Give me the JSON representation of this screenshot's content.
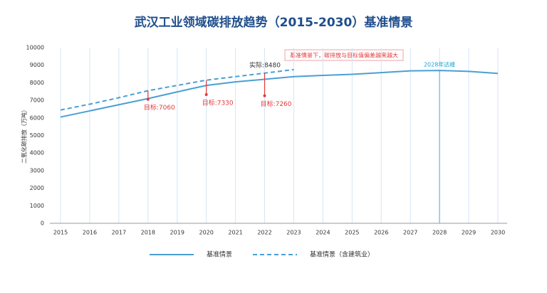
{
  "chart_data": {
    "type": "line",
    "title": "武汉工业领域碳排放趋势（2015-2030）基准情景",
    "y_label": "二氧化碳排放（万吨）",
    "categories": [
      "2015",
      "2016",
      "2017",
      "2018",
      "2019",
      "2020",
      "2021",
      "2022",
      "2023",
      "2024",
      "2025",
      "2026",
      "2027",
      "2028",
      "2029",
      "2030"
    ],
    "series": [
      {
        "name": "基准情景",
        "color": "#4a9fd4",
        "dash": false,
        "values": [
          6050,
          6400,
          6750,
          7100,
          7480,
          7850,
          8050,
          8200,
          8350,
          8420,
          8480,
          8580,
          8680,
          8700,
          8650,
          8530
        ]
      },
      {
        "name": "基准情景（含建筑业）",
        "color": "#4a9fd4",
        "dash": true,
        "values": [
          6450,
          6780,
          7150,
          7550,
          7850,
          8150,
          8350,
          8550,
          8750,
          null,
          null,
          null,
          null,
          null,
          null,
          null
        ]
      }
    ],
    "ylim": [
      0,
      10000
    ],
    "yticks": [
      0,
      1000,
      2000,
      3000,
      4000,
      5000,
      6000,
      7000,
      8000,
      9000,
      10000
    ],
    "grid": true,
    "targets": [
      {
        "x": "2018",
        "value": 7060,
        "label": "目标:7060"
      },
      {
        "x": "2020",
        "value": 7330,
        "label": "目标:7330"
      },
      {
        "x": "2022",
        "value": 7260,
        "label": "目标:7260"
      }
    ],
    "actual_label": "实际:8480",
    "peak": {
      "x": "2028",
      "label": "2028年达峰"
    },
    "callout": "基准情景下，碳排放与目标值偏差越来越大"
  }
}
